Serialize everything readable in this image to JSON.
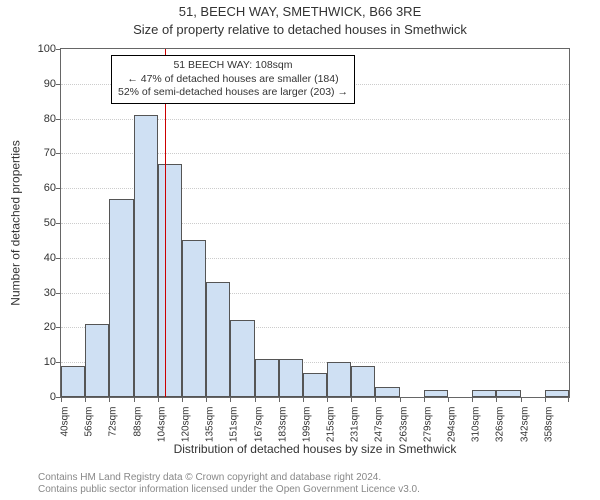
{
  "titles": {
    "line1": "51, BEECH WAY, SMETHWICK, B66 3RE",
    "line2": "Size of property relative to detached houses in Smethwick"
  },
  "axes": {
    "xlabel": "Distribution of detached houses by size in Smethwick",
    "ylabel": "Number of detached properties",
    "ylim": [
      0,
      100
    ],
    "ytick_step": 10,
    "grid_color": "#cccccc",
    "axis_color": "#666666"
  },
  "chart": {
    "type": "histogram",
    "bar_fill": "#cfe0f3",
    "bar_border": "#555555",
    "bar_width_ratio": 1.0,
    "categories": [
      "40sqm",
      "56sqm",
      "72sqm",
      "88sqm",
      "104sqm",
      "120sqm",
      "135sqm",
      "151sqm",
      "167sqm",
      "183sqm",
      "199sqm",
      "215sqm",
      "231sqm",
      "247sqm",
      "263sqm",
      "279sqm",
      "294sqm",
      "310sqm",
      "326sqm",
      "342sqm",
      "358sqm"
    ],
    "values": [
      9,
      21,
      57,
      81,
      67,
      45,
      33,
      22,
      11,
      11,
      7,
      10,
      9,
      3,
      0,
      2,
      0,
      2,
      2,
      0,
      2
    ]
  },
  "reference_line": {
    "position_index": 4.3,
    "color": "#cc0000"
  },
  "annotation": {
    "line1": "51 BEECH WAY: 108sqm",
    "line2": "← 47% of detached houses are smaller (184)",
    "line3": "52% of semi-detached houses are larger (203) →",
    "border_color": "#000000",
    "background": "#ffffff"
  },
  "footnote": {
    "line1": "Contains HM Land Registry data © Crown copyright and database right 2024.",
    "line2": "Contains public sector information licensed under the Open Government Licence v3.0."
  },
  "colors": {
    "background": "#ffffff",
    "text": "#333333",
    "footnote": "#888888"
  },
  "font": {
    "family": "Arial",
    "title_size": 13,
    "label_size": 12,
    "tick_size": 11,
    "annotation_size": 10.5
  }
}
